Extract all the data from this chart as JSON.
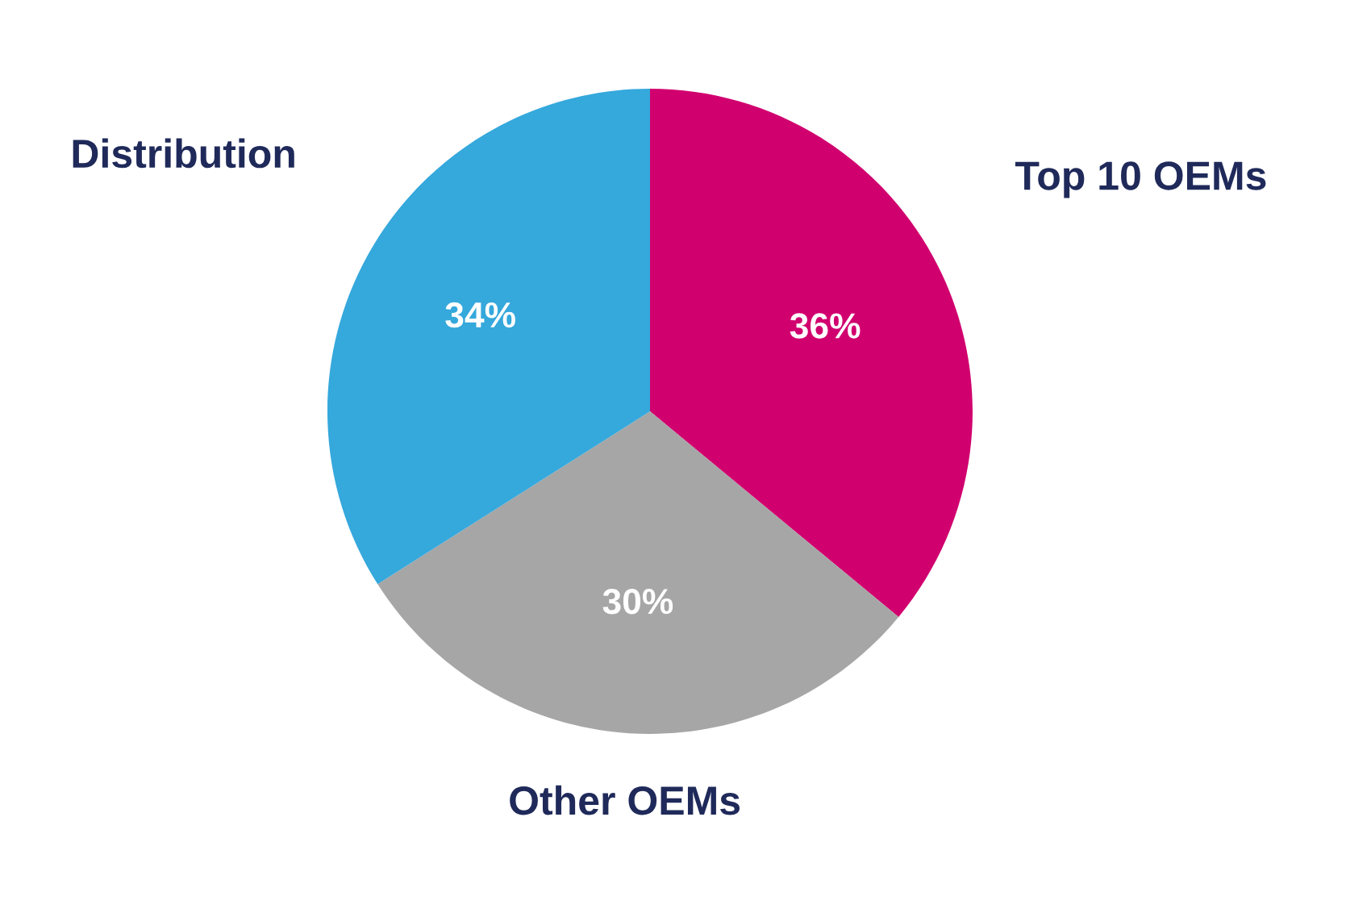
{
  "chart_data": {
    "type": "pie",
    "categories": [
      "Top 10 OEMs",
      "Other OEMs",
      "Distribution"
    ],
    "values": [
      36,
      30,
      34
    ],
    "value_labels": [
      "36%",
      "30%",
      "34%"
    ],
    "colors": [
      "#d1006f",
      "#a6a6a6",
      "#35a8dc"
    ],
    "legend": false
  }
}
